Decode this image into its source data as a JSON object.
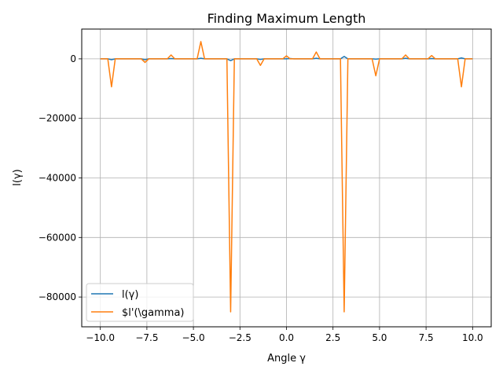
{
  "chart_data": {
    "type": "line",
    "title": "Finding Maximum Length",
    "xlabel": "Angle γ",
    "ylabel": "l(γ)",
    "xlim": [
      -11,
      11
    ],
    "ylim": [
      -90000,
      10000
    ],
    "xticks": [
      -10,
      -7.5,
      -5,
      -2.5,
      0,
      2.5,
      5,
      7.5,
      10
    ],
    "xtick_labels": [
      "−10.0",
      "−7.5",
      "−5.0",
      "−2.5",
      "0.0",
      "2.5",
      "5.0",
      "7.5",
      "10.0"
    ],
    "yticks": [
      0,
      -20000,
      -40000,
      -60000,
      -80000
    ],
    "ytick_labels": [
      "0",
      "−20000",
      "−40000",
      "−60000",
      "−80000"
    ],
    "grid": true,
    "legend_position": "lower-left",
    "series": [
      {
        "name": "l(γ)",
        "color": "#1f77b4",
        "points": [
          [
            -10,
            0
          ],
          [
            -9.6,
            0
          ],
          [
            -9.4,
            -300
          ],
          [
            -9.2,
            0
          ],
          [
            -7.8,
            0
          ],
          [
            -7.6,
            -300
          ],
          [
            -7.4,
            0
          ],
          [
            -6.4,
            0
          ],
          [
            -6.2,
            100
          ],
          [
            -6.0,
            0
          ],
          [
            -4.8,
            0
          ],
          [
            -4.6,
            200
          ],
          [
            -4.4,
            0
          ],
          [
            -3.2,
            0
          ],
          [
            -3.0,
            -600
          ],
          [
            -2.8,
            0
          ],
          [
            -1.6,
            0
          ],
          [
            -1.4,
            -200
          ],
          [
            -1.2,
            0
          ],
          [
            0,
            0
          ],
          [
            0.2,
            100
          ],
          [
            0.4,
            0
          ],
          [
            1.4,
            0
          ],
          [
            1.6,
            200
          ],
          [
            1.8,
            0
          ],
          [
            2.9,
            0
          ],
          [
            3.1,
            800
          ],
          [
            3.3,
            0
          ],
          [
            4.6,
            0
          ],
          [
            4.8,
            -100
          ],
          [
            5.0,
            0
          ],
          [
            6.2,
            0
          ],
          [
            6.4,
            200
          ],
          [
            6.6,
            0
          ],
          [
            7.6,
            0
          ],
          [
            7.8,
            100
          ],
          [
            8.0,
            0
          ],
          [
            9.2,
            0
          ],
          [
            9.4,
            300
          ],
          [
            9.6,
            0
          ],
          [
            10,
            0
          ]
        ]
      },
      {
        "name": "$l'(\\gamma)",
        "color": "#ff7f0e",
        "points": [
          [
            -10,
            0
          ],
          [
            -9.6,
            0
          ],
          [
            -9.4,
            -9400
          ],
          [
            -9.2,
            0
          ],
          [
            -7.8,
            0
          ],
          [
            -7.6,
            -1200
          ],
          [
            -7.4,
            0
          ],
          [
            -6.4,
            0
          ],
          [
            -6.2,
            1300
          ],
          [
            -6.0,
            0
          ],
          [
            -4.8,
            0
          ],
          [
            -4.6,
            5800
          ],
          [
            -4.4,
            0
          ],
          [
            -3.2,
            0
          ],
          [
            -3.0,
            -85000
          ],
          [
            -2.8,
            0
          ],
          [
            -1.6,
            0
          ],
          [
            -1.4,
            -2200
          ],
          [
            -1.2,
            0
          ],
          [
            -0.2,
            0
          ],
          [
            0,
            1000
          ],
          [
            0.2,
            0
          ],
          [
            1.4,
            0
          ],
          [
            1.6,
            2300
          ],
          [
            1.8,
            0
          ],
          [
            2.9,
            0
          ],
          [
            3.1,
            -85000
          ],
          [
            3.3,
            0
          ],
          [
            4.6,
            0
          ],
          [
            4.8,
            -5700
          ],
          [
            5.0,
            0
          ],
          [
            6.2,
            0
          ],
          [
            6.4,
            1300
          ],
          [
            6.6,
            0
          ],
          [
            7.6,
            0
          ],
          [
            7.8,
            1100
          ],
          [
            8.0,
            0
          ],
          [
            9.2,
            0
          ],
          [
            9.4,
            -9400
          ],
          [
            9.6,
            0
          ],
          [
            10,
            0
          ]
        ]
      }
    ]
  }
}
